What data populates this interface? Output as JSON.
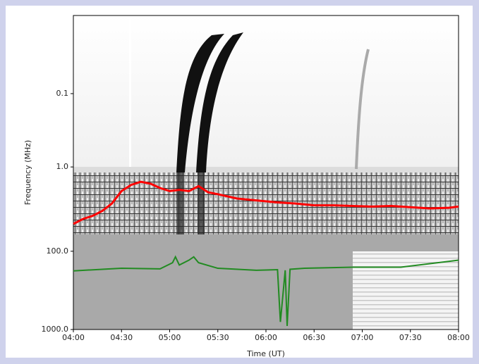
{
  "chart_data": {
    "type": "spectrogram",
    "y_label": "Frequency (MHz)",
    "x_label": "Time (UT)",
    "xlim": [
      4,
      8
    ],
    "xticks": [
      {
        "value": 4,
        "label": "04:00"
      },
      {
        "value": 4.5,
        "label": "04:30"
      },
      {
        "value": 5,
        "label": "05:00"
      },
      {
        "value": 5.5,
        "label": "05:30"
      },
      {
        "value": 6,
        "label": "06:00"
      },
      {
        "value": 6.5,
        "label": "06:30"
      },
      {
        "value": 7,
        "label": "07:00"
      },
      {
        "value": 7.5,
        "label": "07:30"
      },
      {
        "value": 8,
        "label": "08:00"
      }
    ],
    "panels": [
      {
        "log": true,
        "ylim": [
          0.0086,
          1.19
        ],
        "yticks": [
          0.1,
          {
            "value": 1,
            "label": "1.0"
          }
        ]
      },
      {
        "ylim": [
          0,
          1
        ],
        "yticks": [],
        "series": [
          {
            "color": "#ff0000",
            "x": [
              4.0,
              4.1,
              4.2,
              4.3,
              4.4,
              4.5,
              4.6,
              4.7,
              4.8,
              4.9,
              5.0,
              5.1,
              5.2,
              5.3,
              5.4,
              5.5,
              5.7,
              5.9,
              6.1,
              6.3,
              6.5,
              6.7,
              6.9,
              7.1,
              7.3,
              7.5,
              7.7,
              7.9,
              8.0
            ],
            "values": [
              0.17,
              0.25,
              0.3,
              0.38,
              0.5,
              0.7,
              0.8,
              0.85,
              0.82,
              0.75,
              0.7,
              0.72,
              0.7,
              0.78,
              0.68,
              0.65,
              0.58,
              0.55,
              0.52,
              0.5,
              0.47,
              0.47,
              0.46,
              0.45,
              0.46,
              0.44,
              0.42,
              0.43,
              0.45
            ]
          }
        ]
      },
      {
        "log": true,
        "ylim": [
          1000,
          61
        ],
        "yticks": [
          {
            "value": 100,
            "label": "100.0"
          },
          {
            "value": 1000,
            "label": "1000.0"
          }
        ],
        "series": [
          {
            "color": "#228b22",
            "x": [
              4.0,
              4.5,
              4.9,
              5.03,
              5.06,
              5.1,
              5.2,
              5.25,
              5.3,
              5.5,
              5.9,
              6.12,
              6.15,
              6.2,
              6.22,
              6.25,
              6.4,
              6.9,
              7.4,
              8.0
            ],
            "values": [
              178,
              165,
              168,
              140,
              118,
              150,
              130,
              118,
              140,
              165,
              175,
              172,
              800,
              175,
              900,
              170,
              165,
              160,
              160,
              130
            ]
          }
        ]
      }
    ]
  }
}
